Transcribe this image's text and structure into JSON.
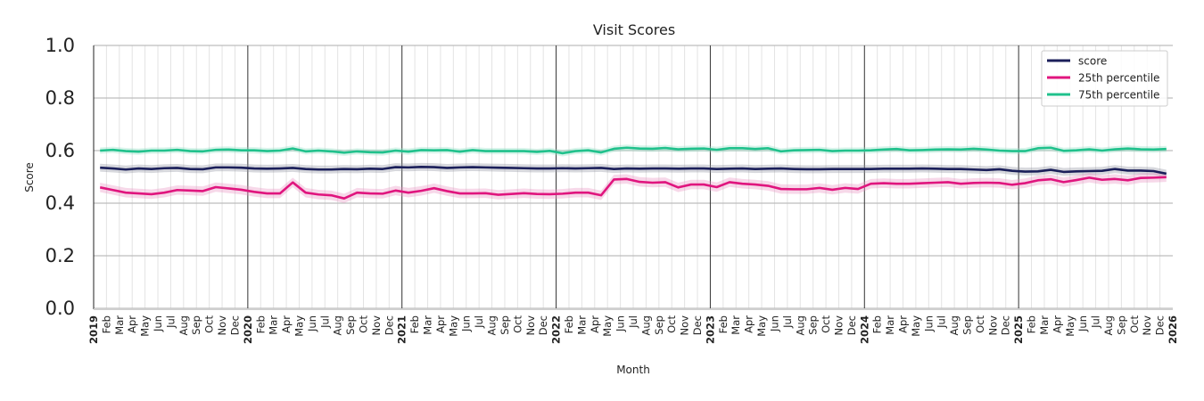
{
  "chart_data": {
    "type": "line",
    "title": "Visit Scores",
    "xlabel": "Month",
    "ylabel": "Score",
    "ylim": [
      0,
      1
    ],
    "yticks": [
      "0.0",
      "0.2",
      "0.4",
      "0.6",
      "0.8",
      "1.0"
    ],
    "xlim": [
      "2019-01",
      "2026-01"
    ],
    "year_labels": [
      "2019",
      "2020",
      "2021",
      "2022",
      "2023",
      "2024",
      "2025",
      "2026"
    ],
    "month_labels": [
      "Feb",
      "Mar",
      "Apr",
      "May",
      "Jun",
      "Jul",
      "Aug",
      "Sep",
      "Oct",
      "Nov",
      "Dec"
    ],
    "grid": true,
    "legend_position": "top-right",
    "series": [
      {
        "name": "score",
        "color": "#1b1f5a",
        "band_color": "#8c8f9e",
        "band_halfwidth": 0.015,
        "values": [
          0.535,
          0.532,
          0.528,
          0.532,
          0.53,
          0.533,
          0.534,
          0.53,
          0.529,
          0.536,
          0.536,
          0.535,
          0.532,
          0.531,
          0.532,
          0.534,
          0.53,
          0.528,
          0.528,
          0.53,
          0.529,
          0.531,
          0.53,
          0.537,
          0.536,
          0.538,
          0.537,
          0.534,
          0.536,
          0.537,
          0.536,
          0.535,
          0.534,
          0.533,
          0.532,
          0.532,
          0.533,
          0.532,
          0.533,
          0.534,
          0.53,
          0.532,
          0.531,
          0.532,
          0.532,
          0.531,
          0.532,
          0.532,
          0.53,
          0.531,
          0.532,
          0.53,
          0.531,
          0.532,
          0.53,
          0.529,
          0.529,
          0.53,
          0.53,
          0.53,
          0.53,
          0.531,
          0.531,
          0.531,
          0.532,
          0.531,
          0.53,
          0.53,
          0.528,
          0.526,
          0.529,
          0.523,
          0.52,
          0.521,
          0.527,
          0.519,
          0.521,
          0.522,
          0.523,
          0.53,
          0.524,
          0.524,
          0.522,
          0.512
        ]
      },
      {
        "name": "25th percentile",
        "color": "#e0157e",
        "band_color": "#e98fc0",
        "band_halfwidth": 0.018,
        "values": [
          0.46,
          0.45,
          0.44,
          0.437,
          0.434,
          0.44,
          0.45,
          0.448,
          0.446,
          0.461,
          0.456,
          0.451,
          0.443,
          0.437,
          0.437,
          0.479,
          0.44,
          0.433,
          0.43,
          0.418,
          0.44,
          0.437,
          0.436,
          0.448,
          0.44,
          0.447,
          0.457,
          0.446,
          0.437,
          0.437,
          0.438,
          0.432,
          0.435,
          0.438,
          0.435,
          0.434,
          0.436,
          0.44,
          0.44,
          0.43,
          0.49,
          0.492,
          0.481,
          0.478,
          0.48,
          0.46,
          0.471,
          0.471,
          0.461,
          0.48,
          0.474,
          0.471,
          0.466,
          0.454,
          0.453,
          0.453,
          0.458,
          0.451,
          0.458,
          0.454,
          0.474,
          0.476,
          0.474,
          0.474,
          0.476,
          0.478,
          0.48,
          0.474,
          0.477,
          0.478,
          0.477,
          0.47,
          0.476,
          0.487,
          0.491,
          0.48,
          0.488,
          0.497,
          0.489,
          0.492,
          0.487,
          0.496,
          0.497,
          0.499
        ]
      },
      {
        "name": "75th percentile",
        "color": "#20c18c",
        "band_color": "#8fe0c4",
        "band_halfwidth": 0.012,
        "values": [
          0.6,
          0.603,
          0.598,
          0.596,
          0.6,
          0.6,
          0.603,
          0.598,
          0.597,
          0.603,
          0.604,
          0.601,
          0.601,
          0.598,
          0.6,
          0.608,
          0.597,
          0.6,
          0.597,
          0.592,
          0.597,
          0.594,
          0.593,
          0.6,
          0.596,
          0.602,
          0.601,
          0.602,
          0.596,
          0.602,
          0.598,
          0.598,
          0.598,
          0.598,
          0.595,
          0.599,
          0.59,
          0.598,
          0.601,
          0.593,
          0.607,
          0.611,
          0.608,
          0.607,
          0.61,
          0.605,
          0.607,
          0.608,
          0.603,
          0.609,
          0.609,
          0.606,
          0.609,
          0.597,
          0.601,
          0.602,
          0.603,
          0.598,
          0.6,
          0.6,
          0.601,
          0.604,
          0.606,
          0.601,
          0.602,
          0.604,
          0.605,
          0.604,
          0.607,
          0.604,
          0.6,
          0.598,
          0.598,
          0.609,
          0.611,
          0.599,
          0.601,
          0.605,
          0.6,
          0.605,
          0.608,
          0.605,
          0.604,
          0.606
        ]
      }
    ]
  }
}
